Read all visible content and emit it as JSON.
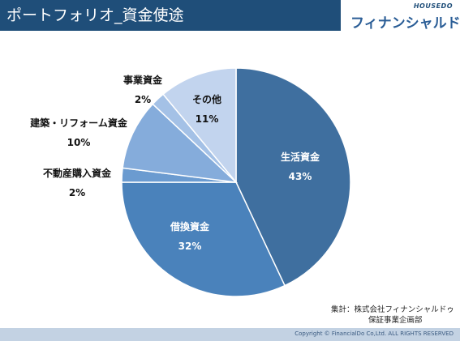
{
  "header": {
    "title": "ポートフォリオ_資金使途"
  },
  "logo": {
    "top_text": "HOUSEDO",
    "main_text": "フィナンシャルドゥ"
  },
  "note": {
    "line1": "集計：株式会社フィナンシャルドゥ",
    "line2": "保証事業企画部"
  },
  "footer": {
    "copyright": "Copyright © FinancialDo Co,Ltd. ALL RIGHTS RESERVED"
  },
  "colors": {
    "header_bg": "#1f4e79",
    "footer_bg": "#c3d2e3"
  },
  "chart_data": {
    "type": "pie",
    "start_angle_deg": 0,
    "direction": "clockwise",
    "slices": [
      {
        "label": "生活資金",
        "value": 43,
        "value_label": "43%",
        "color": "#3f6f9f",
        "label_color": "#ffffff",
        "label_position": "inside"
      },
      {
        "label": "借換資金",
        "value": 32,
        "value_label": "32%",
        "color": "#4a82bb",
        "label_color": "#ffffff",
        "label_position": "inside"
      },
      {
        "label": "不動産購入資金",
        "value": 2,
        "value_label": "2%",
        "color": "#6b9bd0",
        "label_color": "#111111",
        "label_position": "outside"
      },
      {
        "label": "建築・リフォーム資金",
        "value": 10,
        "value_label": "10%",
        "color": "#85acdb",
        "label_color": "#111111",
        "label_position": "outside"
      },
      {
        "label": "事業資金",
        "value": 2,
        "value_label": "2%",
        "color": "#a4c1e6",
        "label_color": "#111111",
        "label_position": "outside"
      },
      {
        "label": "その他",
        "value": 11,
        "value_label": "11%",
        "color": "#c2d4ee",
        "label_color": "#111111",
        "label_position": "inside"
      }
    ]
  }
}
